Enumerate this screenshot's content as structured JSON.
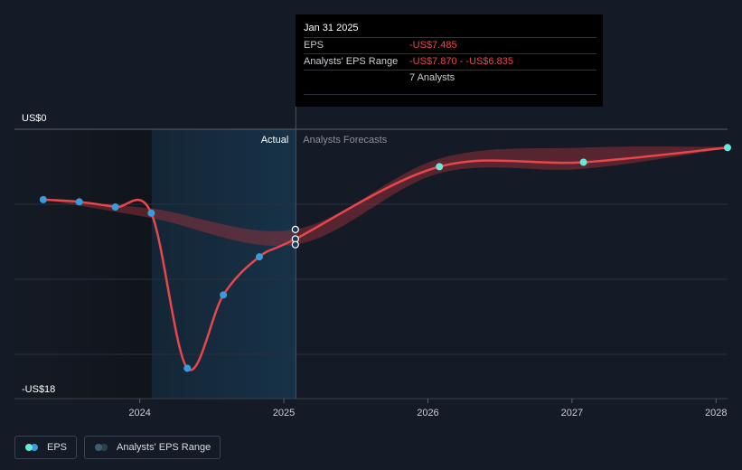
{
  "chart_data": {
    "type": "line",
    "y_unit_labels": {
      "top": "US$0",
      "bottom": "-US$18"
    },
    "ylim": [
      -18,
      0
    ],
    "xlim": [
      2023.13,
      2028.08
    ],
    "x_ticks": [
      "2024",
      "2025",
      "2026",
      "2027",
      "2028"
    ],
    "x_tick_values": [
      2024,
      2025,
      2026,
      2027,
      2028
    ],
    "divider_x": 2025.083,
    "actual_start_x": 2024.083,
    "region_labels": {
      "actual": "Actual",
      "forecast": "Analysts Forecasts"
    },
    "series": [
      {
        "name": "EPS",
        "color": "#e8464b",
        "actual_points": [
          {
            "x": 2023.33,
            "y": -4.8
          },
          {
            "x": 2023.58,
            "y": -4.95
          },
          {
            "x": 2023.83,
            "y": -5.3
          },
          {
            "x": 2024.08,
            "y": -5.72
          },
          {
            "x": 2024.33,
            "y": -16.3
          },
          {
            "x": 2024.58,
            "y": -11.3
          },
          {
            "x": 2024.83,
            "y": -8.7
          },
          {
            "x": 2025.08,
            "y": -7.485
          }
        ],
        "forecast_points": [
          {
            "x": 2026.08,
            "y": -2.55
          },
          {
            "x": 2027.08,
            "y": -2.25
          },
          {
            "x": 2028.08,
            "y": -1.25
          }
        ]
      },
      {
        "name": "Analysts' EPS Range",
        "color": "#a7343b",
        "upper": [
          {
            "x": 2023.33,
            "y": -4.8
          },
          {
            "x": 2024.08,
            "y": -5.4
          },
          {
            "x": 2025.08,
            "y": -6.835
          },
          {
            "x": 2026.08,
            "y": -2.0
          },
          {
            "x": 2027.08,
            "y": -1.25
          },
          {
            "x": 2028.08,
            "y": -1.2
          }
        ],
        "lower": [
          {
            "x": 2023.33,
            "y": -4.8
          },
          {
            "x": 2024.08,
            "y": -6.05
          },
          {
            "x": 2025.08,
            "y": -7.87
          },
          {
            "x": 2026.08,
            "y": -3.0
          },
          {
            "x": 2027.08,
            "y": -2.7
          },
          {
            "x": 2028.08,
            "y": -1.3
          }
        ],
        "estimate_points": [
          {
            "x": 2025.08,
            "y": -6.835
          },
          {
            "x": 2025.08,
            "y": -7.485
          },
          {
            "x": 2025.08,
            "y": -7.87
          }
        ]
      }
    ],
    "legend": {
      "placement": "bottom-left",
      "items": [
        {
          "label": "EPS",
          "colors": [
            "#67e8d8",
            "#3a9bdc"
          ]
        },
        {
          "label": "Analysts' EPS Range",
          "colors": [
            "#3b5f71",
            "#27414f"
          ]
        }
      ]
    },
    "tooltip": {
      "date": "Jan 31 2025",
      "rows": [
        {
          "label": "EPS",
          "value": "-US$7.485"
        },
        {
          "label": "Analysts' EPS Range",
          "value": "-US$7.870 - -US$6.835"
        },
        {
          "label": "",
          "value": "7 Analysts"
        }
      ]
    }
  }
}
